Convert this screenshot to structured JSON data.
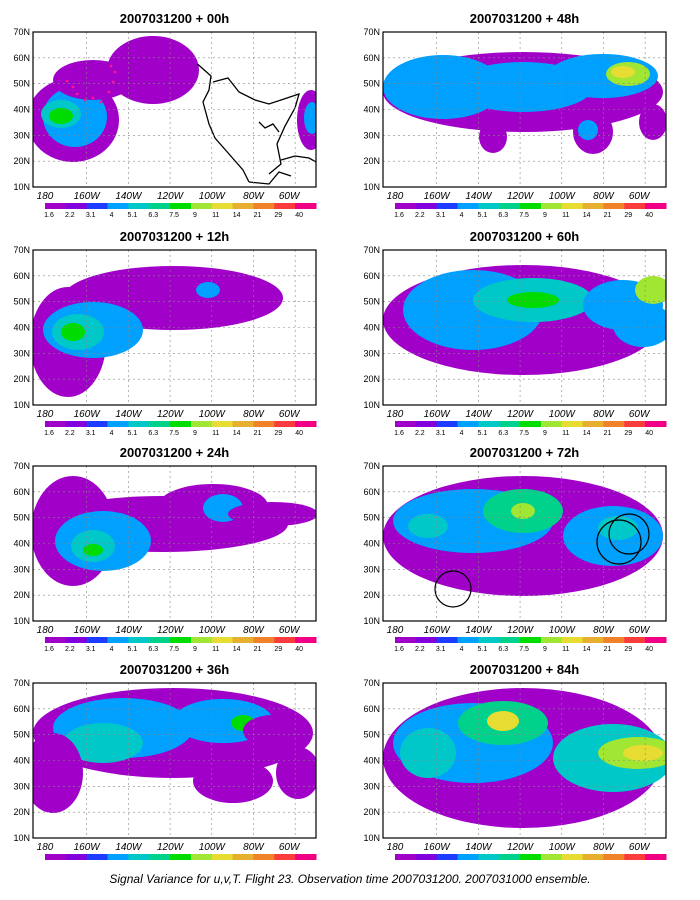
{
  "figure": {
    "caption": "Signal Variance for u,v,T. Flight 23. Observation time 2007031200. 2007031000 ensemble."
  },
  "map": {
    "lat_labels": [
      "70N",
      "60N",
      "50N",
      "40N",
      "30N",
      "20N",
      "10N"
    ],
    "lon_labels": [
      "180",
      "160W",
      "140W",
      "120W",
      "100W",
      "80W",
      "60W"
    ],
    "lon_range": [
      170,
      300
    ],
    "lat_range": [
      10,
      70
    ],
    "projection": "cylindrical equidistant",
    "gridlines": "dotted"
  },
  "colorbar": {
    "labels": [
      "1.6",
      "2.2",
      "3.1",
      "4",
      "5.1",
      "6.3",
      "7.5",
      "9",
      "11",
      "14",
      "21",
      "29",
      "40"
    ],
    "colors": [
      "#a000c8",
      "#8200dc",
      "#1e3cff",
      "#00a0ff",
      "#00c8c8",
      "#00d28c",
      "#00dc00",
      "#a0e632",
      "#e6dc32",
      "#e6af2d",
      "#f08228",
      "#fa3c3c",
      "#f00082"
    ]
  },
  "panels": [
    {
      "title": "2007031200 + 00h",
      "column": "left",
      "row": 1
    },
    {
      "title": "2007031200 + 12h",
      "column": "left",
      "row": 2
    },
    {
      "title": "2007031200 + 24h",
      "column": "left",
      "row": 3
    },
    {
      "title": "2007031200 + 36h",
      "column": "left",
      "row": 4
    },
    {
      "title": "2007031200 + 48h",
      "column": "right",
      "row": 1
    },
    {
      "title": "2007031200 + 60h",
      "column": "right",
      "row": 2
    },
    {
      "title": "2007031200 + 72h",
      "column": "right",
      "row": 3
    },
    {
      "title": "2007031200 + 84h",
      "column": "right",
      "row": 4
    }
  ]
}
